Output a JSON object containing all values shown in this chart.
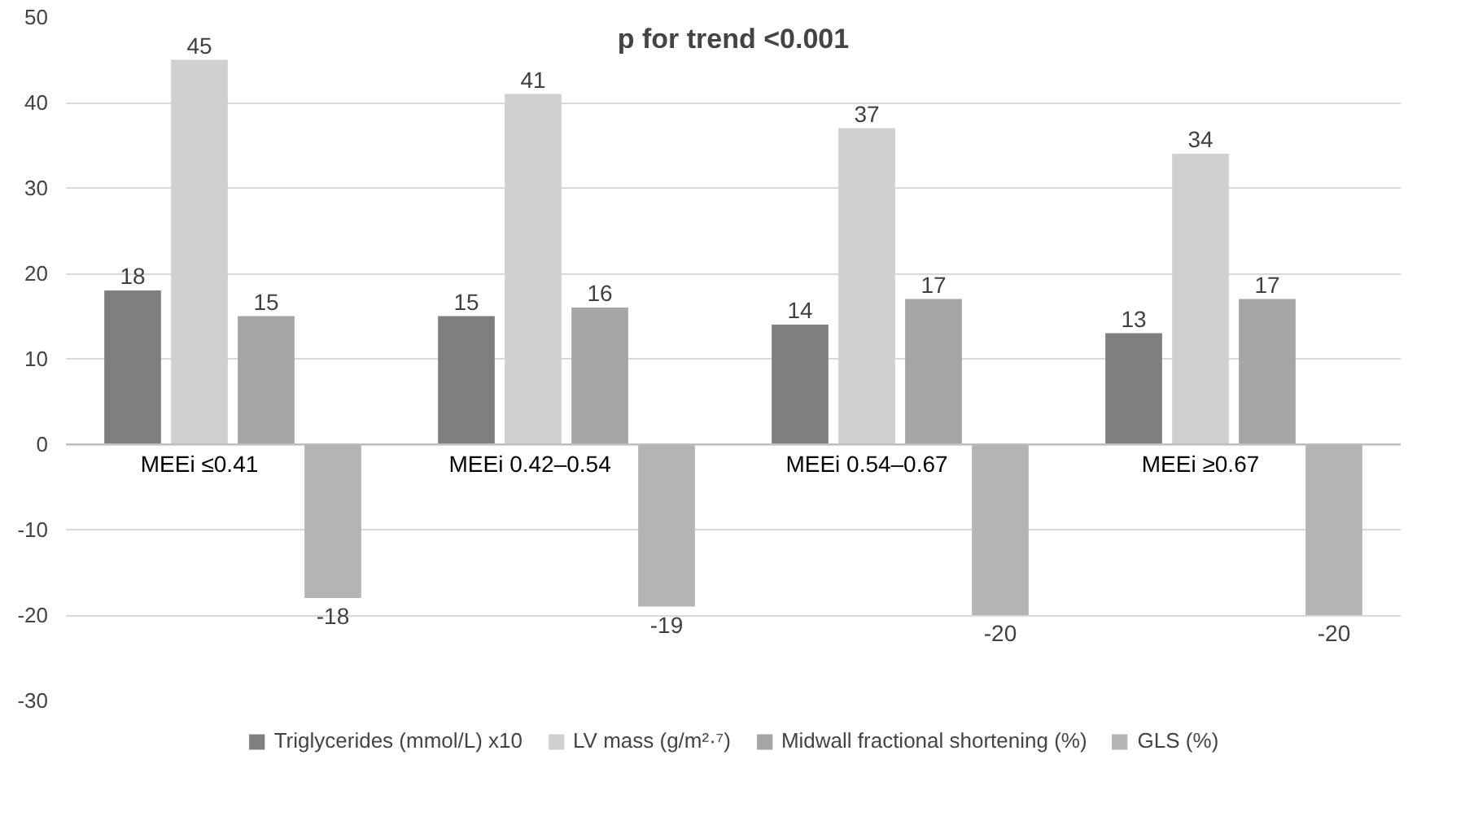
{
  "chart_data": {
    "type": "bar",
    "categories": [
      "MEEi ≤0.41",
      "MEEi  0.42–0.54",
      "MEEi 0.54–0.67",
      "MEEi ≥0.67"
    ],
    "series": [
      {
        "name": "Triglycerides (mmol/L) x10",
        "color": "#7f7f7f",
        "values": [
          18,
          15,
          14,
          13
        ]
      },
      {
        "name": "LV mass (g/m²·⁷)",
        "color": "#d0d0d0",
        "values": [
          45,
          41,
          37,
          34
        ]
      },
      {
        "name": "Midwall fractional shortening (%)",
        "color": "#a5a5a5",
        "values": [
          15,
          16,
          17,
          17
        ]
      },
      {
        "name": "GLS (%)",
        "color": "#b4b4b4",
        "values": [
          -18,
          -19,
          -20,
          -20
        ]
      }
    ],
    "ylim": [
      -30,
      50
    ],
    "yticks": [
      -30,
      -20,
      -10,
      0,
      10,
      20,
      30,
      40,
      50
    ],
    "grid": "y",
    "legend": "bottom",
    "data_labels": true,
    "annotations": [
      "p for trend <0.001"
    ]
  }
}
